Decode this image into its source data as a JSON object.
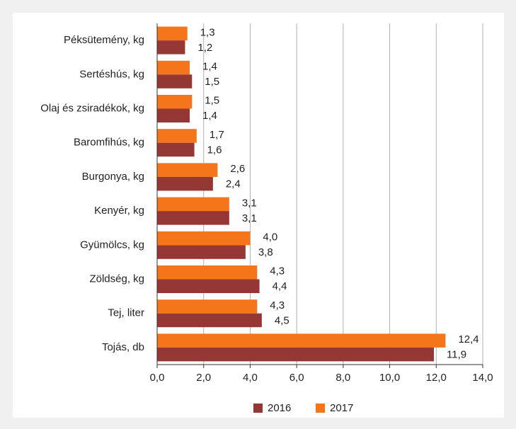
{
  "chart_data": {
    "type": "hbar",
    "categories": [
      "Péksütemény, kg",
      "Sertéshús, kg",
      "Olaj és zsiradékok, kg",
      "Baromfihús, kg",
      "Burgonya, kg",
      "Kenyér, kg",
      "Gyümölcs, kg",
      "Zöldség, kg",
      "Tej, liter",
      "Tojás, db"
    ],
    "series": [
      {
        "name": "2016",
        "color": "#953735",
        "values": [
          1.2,
          1.5,
          1.4,
          1.6,
          2.4,
          3.1,
          3.8,
          4.4,
          4.5,
          11.9
        ],
        "value_labels": [
          "1,2",
          "1,5",
          "1,4",
          "1,6",
          "2,4",
          "3,1",
          "3,8",
          "4,4",
          "4,5",
          "11,9"
        ]
      },
      {
        "name": "2017",
        "color": "#f5761a",
        "values": [
          1.3,
          1.4,
          1.5,
          1.7,
          2.6,
          3.1,
          4.0,
          4.3,
          4.3,
          12.4
        ],
        "value_labels": [
          "1,3",
          "1,4",
          "1,5",
          "1,7",
          "2,6",
          "3,1",
          "4,0",
          "4,3",
          "4,3",
          "12,4"
        ]
      }
    ],
    "xlim": [
      0,
      14
    ],
    "xticks": [
      {
        "value": 0,
        "label": "0,0"
      },
      {
        "value": 2,
        "label": "2,0"
      },
      {
        "value": 4,
        "label": "4,0"
      },
      {
        "value": 6,
        "label": "6,0"
      },
      {
        "value": 8,
        "label": "8,0"
      },
      {
        "value": 10,
        "label": "10,0"
      },
      {
        "value": 12,
        "label": "12,0"
      },
      {
        "value": 14,
        "label": "14,0"
      }
    ],
    "grid": true,
    "legend": "bottom"
  }
}
